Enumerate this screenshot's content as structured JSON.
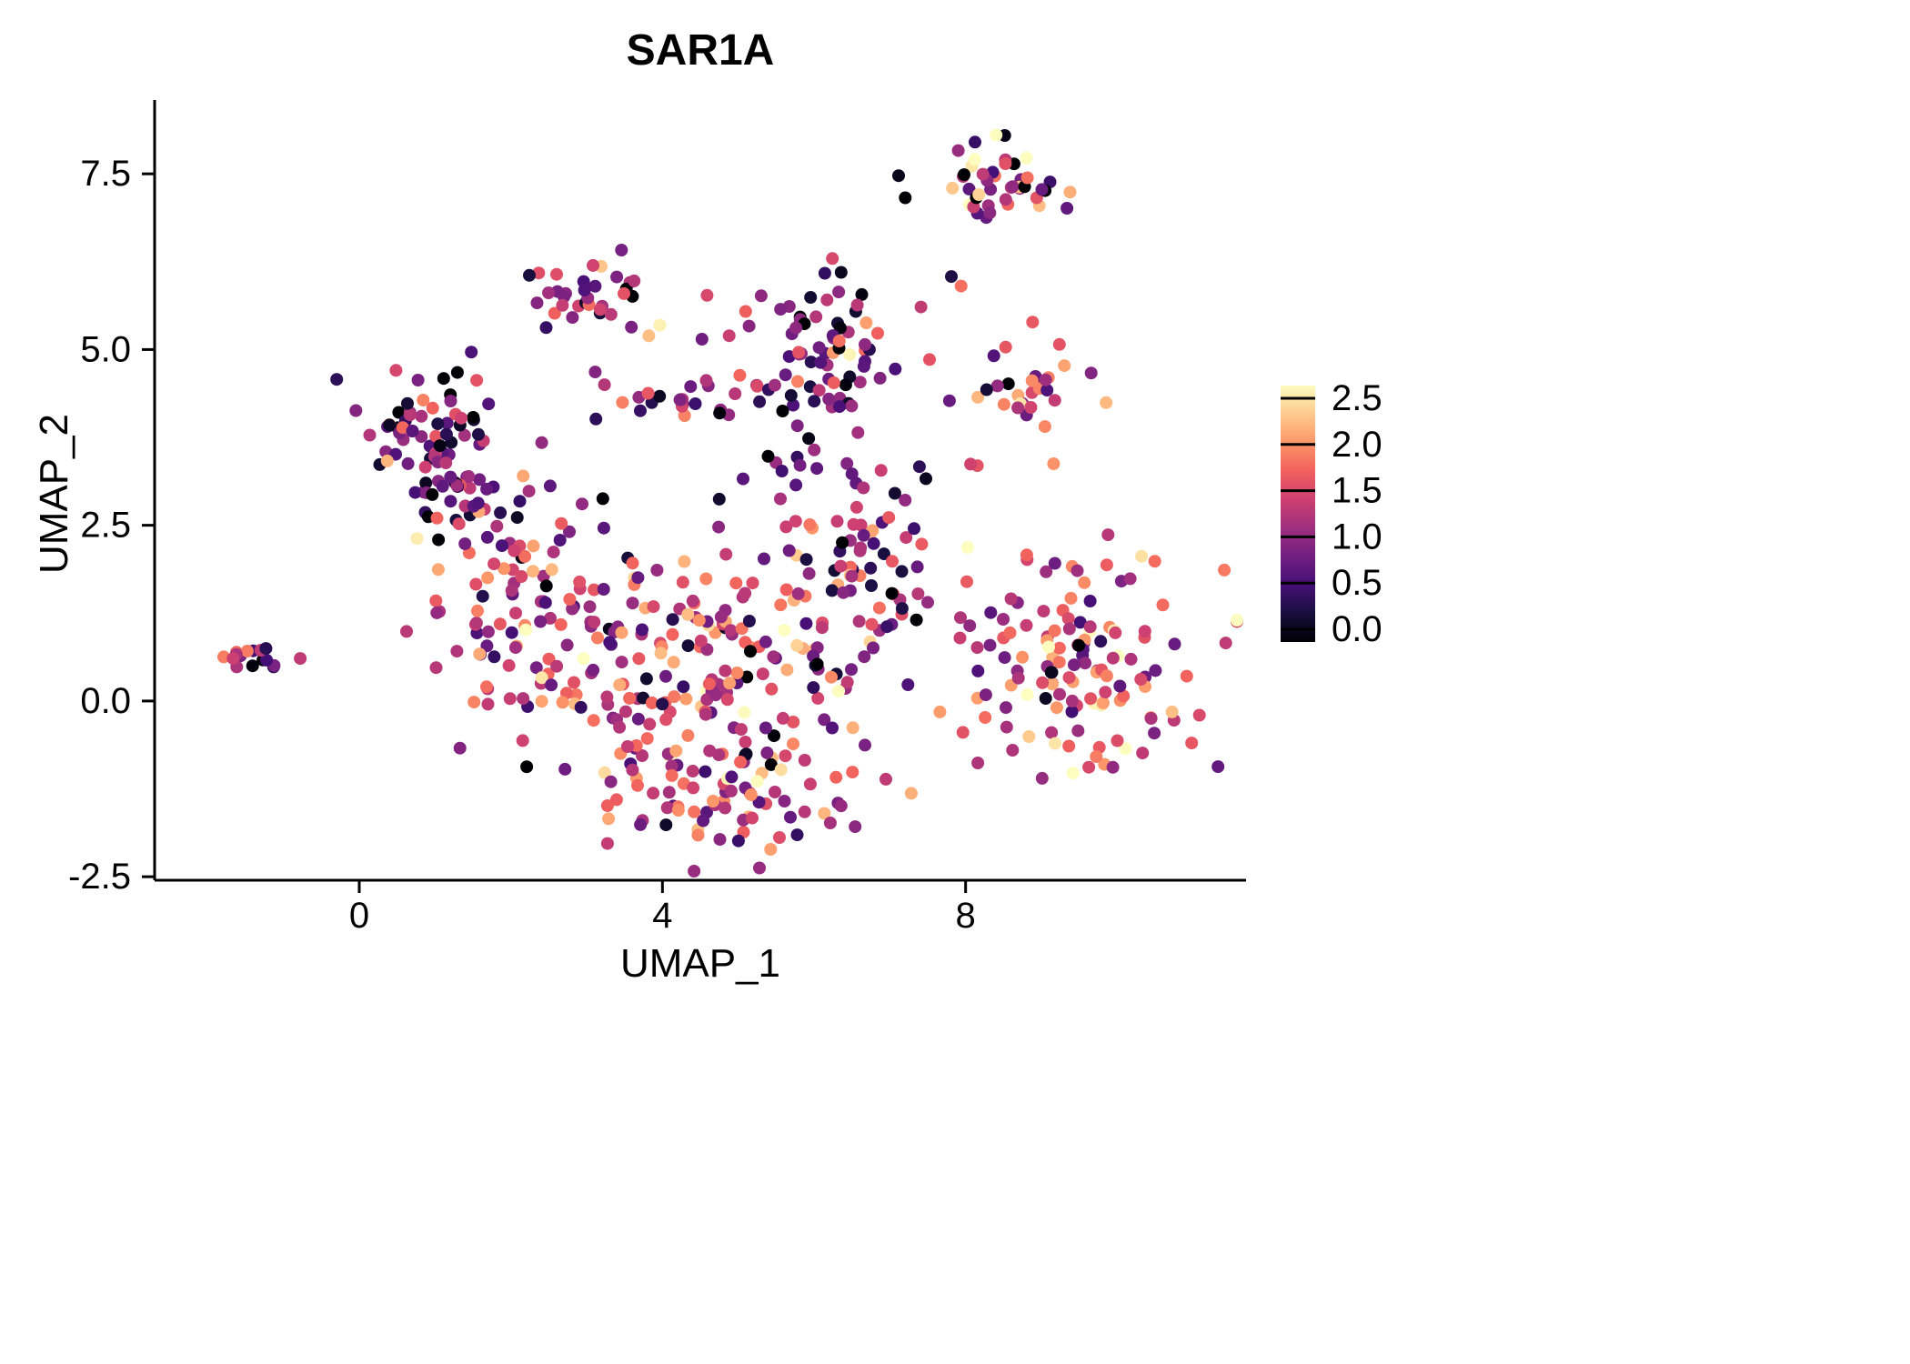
{
  "title": "SAR1A",
  "axes": {
    "x": {
      "label": "UMAP_1",
      "ticks": [
        {
          "v": 0,
          "label": "0"
        },
        {
          "v": 4,
          "label": "4"
        },
        {
          "v": 8,
          "label": "8"
        }
      ]
    },
    "y": {
      "label": "UMAP_2",
      "ticks": [
        {
          "v": 7.5,
          "label": "7.5"
        },
        {
          "v": 5.0,
          "label": "5.0"
        },
        {
          "v": 2.5,
          "label": "2.5"
        },
        {
          "v": 0.0,
          "label": "0.0"
        },
        {
          "v": -2.5,
          "label": "-2.5"
        }
      ]
    }
  },
  "colorbar": {
    "min": 0.0,
    "max": 2.5,
    "ticks": [
      {
        "v": 2.5,
        "label": "2.5"
      },
      {
        "v": 2.0,
        "label": "2.0"
      },
      {
        "v": 1.5,
        "label": "1.5"
      },
      {
        "v": 1.0,
        "label": "1.0"
      },
      {
        "v": 0.5,
        "label": "0.5"
      },
      {
        "v": 0.0,
        "label": "0.0"
      }
    ],
    "colormap_name": "magma",
    "colormap_stops": [
      "#000004",
      "#180f3d",
      "#440f76",
      "#721f81",
      "#9e2f7f",
      "#cd4071",
      "#f1605d",
      "#fd9668",
      "#feca8d",
      "#fcfdbf"
    ]
  },
  "chart_data": {
    "type": "scatter",
    "title": "SAR1A",
    "xlabel": "UMAP_1",
    "ylabel": "UMAP_2",
    "xlim": [
      -2.7,
      11.7
    ],
    "ylim": [
      -2.55,
      8.55
    ],
    "grid": false,
    "legend_position": "right",
    "color_scale": {
      "name": "magma",
      "domain": [
        0.0,
        2.5
      ]
    },
    "point_radius_px": 7,
    "clusters": [
      {
        "name": "far-left-small",
        "cx": -1.35,
        "cy": 0.65,
        "sx": 0.22,
        "sy": 0.1,
        "n": 16,
        "vmean": 1.1,
        "vsd": 0.8
      },
      {
        "name": "top-right",
        "cx": 8.45,
        "cy": 7.45,
        "sx": 0.5,
        "sy": 0.3,
        "n": 45,
        "vmean": 1.1,
        "vsd": 0.8
      },
      {
        "name": "right-upper",
        "cx": 8.85,
        "cy": 4.35,
        "sx": 0.35,
        "sy": 0.35,
        "n": 28,
        "vmean": 1.5,
        "vsd": 0.6
      },
      {
        "name": "top-middle",
        "cx": 2.95,
        "cy": 5.75,
        "sx": 0.33,
        "sy": 0.28,
        "n": 32,
        "vmean": 0.9,
        "vsd": 0.6
      },
      {
        "name": "upper-center",
        "cx": 6.1,
        "cy": 4.9,
        "sx": 0.5,
        "sy": 0.6,
        "n": 72,
        "vmean": 0.85,
        "vsd": 0.55
      },
      {
        "name": "left-cluster",
        "cx": 1.05,
        "cy": 3.7,
        "sx": 0.45,
        "sy": 0.6,
        "n": 78,
        "vmean": 0.75,
        "vsd": 0.6
      },
      {
        "name": "mid-band",
        "cx": 4.4,
        "cy": 4.25,
        "sx": 0.75,
        "sy": 0.15,
        "n": 26,
        "vmean": 0.85,
        "vsd": 0.6
      },
      {
        "name": "center-left",
        "cx": 2.0,
        "cy": 1.4,
        "sx": 0.6,
        "sy": 0.75,
        "n": 80,
        "vmean": 1.25,
        "vsd": 0.6
      },
      {
        "name": "center",
        "cx": 3.6,
        "cy": 0.5,
        "sx": 0.85,
        "sy": 0.85,
        "n": 95,
        "vmean": 1.2,
        "vsd": 0.6
      },
      {
        "name": "center-right",
        "cx": 5.3,
        "cy": 0.3,
        "sx": 0.85,
        "sy": 0.95,
        "n": 115,
        "vmean": 1.35,
        "vsd": 0.55
      },
      {
        "name": "bottom",
        "cx": 4.7,
        "cy": -1.35,
        "sx": 1.0,
        "sy": 0.4,
        "n": 65,
        "vmean": 1.3,
        "vsd": 0.6
      },
      {
        "name": "right-of-center",
        "cx": 6.6,
        "cy": 1.6,
        "sx": 0.6,
        "sy": 0.75,
        "n": 55,
        "vmean": 1.05,
        "vsd": 0.65
      },
      {
        "name": "center-top-bump",
        "cx": 6.9,
        "cy": 2.8,
        "sx": 0.35,
        "sy": 0.4,
        "n": 18,
        "vmean": 0.9,
        "vsd": 0.6
      },
      {
        "name": "right-big",
        "cx": 9.6,
        "cy": 0.45,
        "sx": 0.8,
        "sy": 0.8,
        "n": 135,
        "vmean": 1.4,
        "vsd": 0.6
      },
      {
        "name": "left-mid-small",
        "cx": 1.6,
        "cy": 2.65,
        "sx": 0.4,
        "sy": 0.3,
        "n": 13,
        "vmean": 1.2,
        "vsd": 0.6
      },
      {
        "name": "dark-streak",
        "cx": 5.6,
        "cy": 3.35,
        "sx": 0.4,
        "sy": 0.18,
        "n": 9,
        "vmean": 0.4,
        "vsd": 0.35
      },
      {
        "name": "sparse-upper",
        "cx": 4.6,
        "cy": 5.1,
        "sx": 1.1,
        "sy": 0.55,
        "n": 9,
        "vmean": 1.3,
        "vsd": 0.6
      },
      {
        "name": "sparse-right-upper",
        "cx": 8.2,
        "cy": 5.6,
        "sx": 0.7,
        "sy": 0.8,
        "n": 7,
        "vmean": 1.0,
        "vsd": 0.6
      }
    ]
  }
}
